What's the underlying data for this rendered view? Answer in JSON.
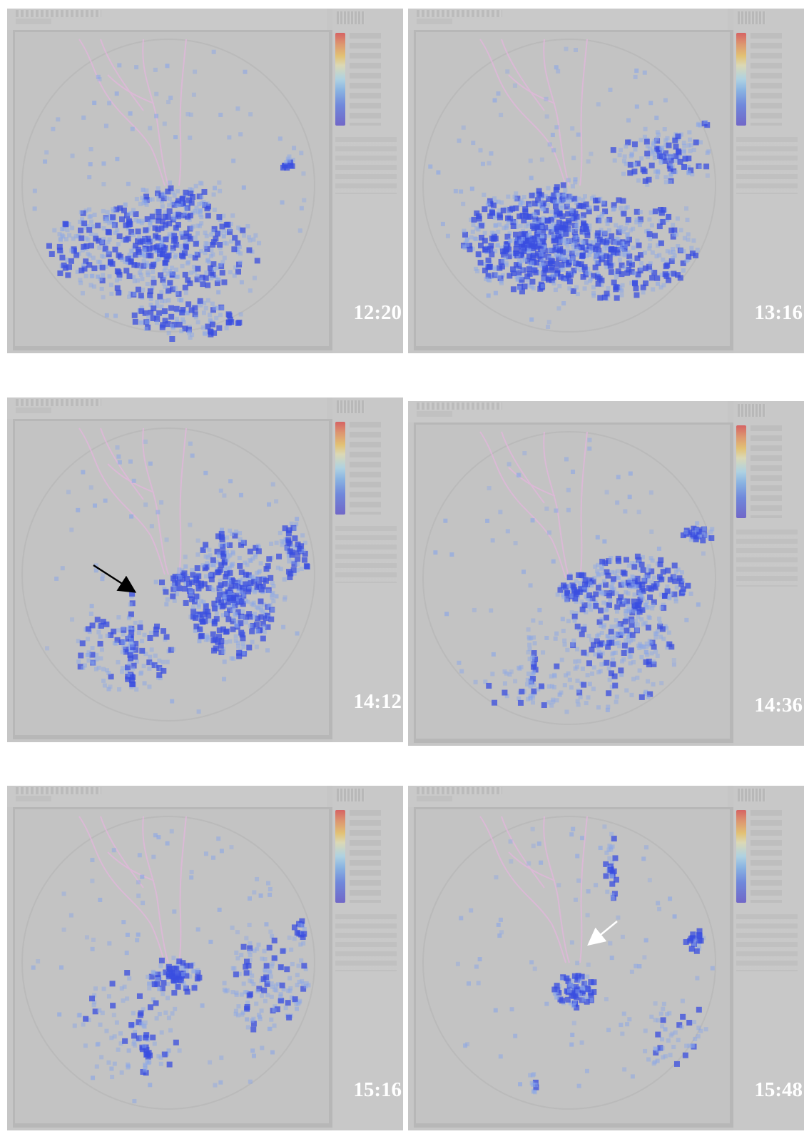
{
  "panels": [
    {
      "id": "p1",
      "time": "12:20"
    },
    {
      "id": "p2",
      "time": "13:16"
    },
    {
      "id": "p3",
      "time": "14:12"
    },
    {
      "id": "p4",
      "time": "14:36"
    },
    {
      "id": "p5",
      "time": "15:16"
    },
    {
      "id": "p6",
      "time": "15:48"
    }
  ],
  "colors": {
    "background": "#c6c6c6",
    "echo_blue": "#3a4ee0",
    "echo_light": "#8aa6e8",
    "coastline": "#e3b6dc",
    "range_ring": "#b8b8b8",
    "annotation_black": "#000000",
    "annotation_white": "#ffffff"
  }
}
